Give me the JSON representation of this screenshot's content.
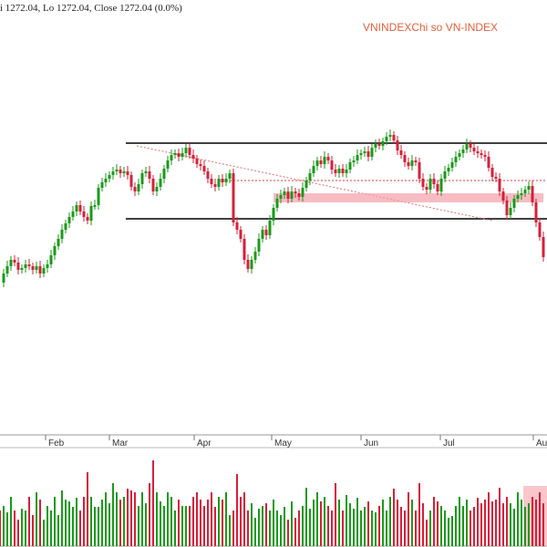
{
  "header": {
    "ohlc_text": "i 1272.04, Lo 1272.04, Close 1272.04 (0.0%)",
    "title": "VNINDEXChi so VN-INDEX"
  },
  "colors": {
    "up": "#1a9a1a",
    "down": "#d6203a",
    "grid": "#bbbbbb",
    "channel_line": "#000000",
    "resistance_dotted": "#e04040",
    "zone_fill": "#f4a0a8",
    "highlight_fill": "#f4a0a8"
  },
  "chart_data": {
    "type": "candlestick",
    "x_tick_labels": [
      "Feb",
      "Mar",
      "Apr",
      "May",
      "Jun",
      "Jul",
      "Aug"
    ],
    "candles": [
      {
        "o": 0.0,
        "c": 0.0,
        "h": 0.0,
        "l": 0.0
      }
    ],
    "price_points": [
      [
        0,
        310
      ],
      [
        4,
        300
      ],
      [
        8,
        292
      ],
      [
        12,
        285
      ],
      [
        16,
        288
      ],
      [
        20,
        296
      ],
      [
        24,
        294
      ],
      [
        28,
        290
      ],
      [
        32,
        292
      ],
      [
        36,
        296
      ],
      [
        40,
        292
      ],
      [
        44,
        300
      ],
      [
        48,
        294
      ],
      [
        52,
        290
      ],
      [
        56,
        280
      ],
      [
        60,
        270
      ],
      [
        64,
        262
      ],
      [
        68,
        252
      ],
      [
        72,
        245
      ],
      [
        76,
        238
      ],
      [
        80,
        232
      ],
      [
        84,
        225
      ],
      [
        88,
        232
      ],
      [
        92,
        238
      ],
      [
        96,
        242
      ],
      [
        100,
        226
      ],
      [
        104,
        225
      ],
      [
        108,
        206
      ],
      [
        112,
        200
      ],
      [
        116,
        196
      ],
      [
        120,
        192
      ],
      [
        124,
        188
      ],
      [
        128,
        186
      ],
      [
        132,
        190
      ],
      [
        136,
        188
      ],
      [
        140,
        192
      ],
      [
        144,
        205
      ],
      [
        148,
        210
      ],
      [
        152,
        202
      ],
      [
        156,
        190
      ],
      [
        160,
        188
      ],
      [
        164,
        196
      ],
      [
        168,
        210
      ],
      [
        172,
        205
      ],
      [
        176,
        196
      ],
      [
        180,
        185
      ],
      [
        184,
        176
      ],
      [
        188,
        170
      ],
      [
        192,
        168
      ],
      [
        196,
        172
      ],
      [
        200,
        168
      ],
      [
        204,
        162
      ],
      [
        208,
        170
      ],
      [
        212,
        174
      ],
      [
        216,
        180
      ],
      [
        220,
        182
      ],
      [
        224,
        188
      ],
      [
        228,
        196
      ],
      [
        232,
        202
      ],
      [
        236,
        205
      ],
      [
        240,
        196
      ],
      [
        244,
        200
      ],
      [
        248,
        196
      ],
      [
        252,
        190
      ],
      [
        256,
        244
      ],
      [
        260,
        252
      ],
      [
        264,
        262
      ],
      [
        268,
        285
      ],
      [
        272,
        295
      ],
      [
        276,
        285
      ],
      [
        280,
        276
      ],
      [
        284,
        262
      ],
      [
        288,
        252
      ],
      [
        292,
        258
      ],
      [
        296,
        242
      ],
      [
        300,
        228
      ],
      [
        304,
        218
      ],
      [
        308,
        214
      ],
      [
        312,
        210
      ],
      [
        316,
        218
      ],
      [
        320,
        210
      ],
      [
        324,
        212
      ],
      [
        328,
        216
      ],
      [
        332,
        206
      ],
      [
        336,
        198
      ],
      [
        340,
        190
      ],
      [
        344,
        182
      ],
      [
        348,
        176
      ],
      [
        352,
        180
      ],
      [
        356,
        172
      ],
      [
        360,
        176
      ],
      [
        364,
        186
      ],
      [
        368,
        190
      ],
      [
        372,
        185
      ],
      [
        376,
        190
      ],
      [
        380,
        186
      ],
      [
        384,
        178
      ],
      [
        388,
        176
      ],
      [
        392,
        170
      ],
      [
        396,
        168
      ],
      [
        400,
        166
      ],
      [
        404,
        172
      ],
      [
        408,
        162
      ],
      [
        412,
        158
      ],
      [
        416,
        160
      ],
      [
        420,
        155
      ],
      [
        424,
        150
      ],
      [
        428,
        148
      ],
      [
        432,
        154
      ],
      [
        436,
        165
      ],
      [
        440,
        170
      ],
      [
        444,
        178
      ],
      [
        448,
        182
      ],
      [
        452,
        176
      ],
      [
        456,
        178
      ],
      [
        460,
        196
      ],
      [
        464,
        205
      ],
      [
        468,
        208
      ],
      [
        472,
        196
      ],
      [
        476,
        202
      ],
      [
        480,
        210
      ],
      [
        484,
        196
      ],
      [
        488,
        188
      ],
      [
        492,
        184
      ],
      [
        496,
        178
      ],
      [
        500,
        172
      ],
      [
        504,
        168
      ],
      [
        508,
        164
      ],
      [
        512,
        158
      ],
      [
        516,
        162
      ],
      [
        520,
        166
      ],
      [
        524,
        168
      ],
      [
        528,
        170
      ],
      [
        532,
        172
      ],
      [
        536,
        184
      ],
      [
        540,
        194
      ],
      [
        544,
        196
      ],
      [
        548,
        210
      ],
      [
        552,
        220
      ],
      [
        556,
        236
      ],
      [
        560,
        228
      ],
      [
        564,
        218
      ],
      [
        568,
        214
      ],
      [
        572,
        212
      ],
      [
        576,
        208
      ],
      [
        580,
        204
      ],
      [
        584,
        222
      ],
      [
        588,
        244
      ],
      [
        592,
        260
      ],
      [
        596,
        282
      ]
    ],
    "volume_points": [
      [
        0,
        560
      ],
      [
        4,
        555
      ],
      [
        8,
        562
      ],
      [
        12,
        545
      ],
      [
        16,
        560
      ],
      [
        20,
        570
      ],
      [
        24,
        558
      ],
      [
        28,
        560
      ],
      [
        32,
        545
      ],
      [
        36,
        565
      ],
      [
        40,
        540
      ],
      [
        44,
        548
      ],
      [
        48,
        570
      ],
      [
        52,
        555
      ],
      [
        56,
        560
      ],
      [
        60,
        545
      ],
      [
        64,
        565
      ],
      [
        68,
        538
      ],
      [
        72,
        548
      ],
      [
        76,
        550
      ],
      [
        80,
        556
      ],
      [
        84,
        546
      ],
      [
        88,
        560
      ],
      [
        92,
        545
      ],
      [
        96,
        518
      ],
      [
        100,
        545
      ],
      [
        104,
        556
      ],
      [
        108,
        556
      ],
      [
        112,
        548
      ],
      [
        116,
        540
      ],
      [
        120,
        552
      ],
      [
        124,
        530
      ],
      [
        128,
        540
      ],
      [
        132,
        548
      ],
      [
        136,
        545
      ],
      [
        140,
        536
      ],
      [
        144,
        538
      ],
      [
        148,
        540
      ],
      [
        152,
        555
      ],
      [
        156,
        540
      ],
      [
        160,
        552
      ],
      [
        164,
        530
      ],
      [
        168,
        505
      ],
      [
        172,
        540
      ],
      [
        176,
        550
      ],
      [
        180,
        555
      ],
      [
        184,
        540
      ],
      [
        188,
        545
      ],
      [
        192,
        560
      ],
      [
        196,
        548
      ],
      [
        200,
        555
      ],
      [
        204,
        555
      ],
      [
        208,
        555
      ],
      [
        212,
        545
      ],
      [
        216,
        540
      ],
      [
        220,
        548
      ],
      [
        224,
        555
      ],
      [
        228,
        548
      ],
      [
        232,
        540
      ],
      [
        236,
        556
      ],
      [
        240,
        545
      ],
      [
        244,
        548
      ],
      [
        248,
        540
      ],
      [
        252,
        565
      ],
      [
        256,
        560
      ],
      [
        260,
        520
      ],
      [
        264,
        545
      ],
      [
        268,
        540
      ],
      [
        272,
        560
      ],
      [
        276,
        552
      ],
      [
        280,
        568
      ],
      [
        284,
        558
      ],
      [
        288,
        555
      ],
      [
        292,
        552
      ],
      [
        296,
        560
      ],
      [
        300,
        548
      ],
      [
        304,
        560
      ],
      [
        308,
        565
      ],
      [
        312,
        556
      ],
      [
        316,
        570
      ],
      [
        320,
        550
      ],
      [
        324,
        568
      ],
      [
        328,
        560
      ],
      [
        332,
        555
      ],
      [
        336,
        535
      ],
      [
        340,
        558
      ],
      [
        344,
        548
      ],
      [
        348,
        540
      ],
      [
        352,
        550
      ],
      [
        356,
        545
      ],
      [
        360,
        555
      ],
      [
        364,
        560
      ],
      [
        368,
        530
      ],
      [
        372,
        548
      ],
      [
        376,
        560
      ],
      [
        380,
        543
      ],
      [
        384,
        552
      ],
      [
        388,
        558
      ],
      [
        392,
        546
      ],
      [
        396,
        560
      ],
      [
        400,
        556
      ],
      [
        404,
        550
      ],
      [
        408,
        560
      ],
      [
        412,
        562
      ],
      [
        416,
        555
      ],
      [
        420,
        548
      ],
      [
        424,
        560
      ],
      [
        428,
        545
      ],
      [
        432,
        536
      ],
      [
        436,
        548
      ],
      [
        440,
        556
      ],
      [
        444,
        560
      ],
      [
        448,
        540
      ],
      [
        452,
        548
      ],
      [
        456,
        560
      ],
      [
        460,
        530
      ],
      [
        464,
        552
      ],
      [
        468,
        570
      ],
      [
        472,
        560
      ],
      [
        476,
        545
      ],
      [
        480,
        550
      ],
      [
        484,
        555
      ],
      [
        488,
        560
      ],
      [
        492,
        568
      ],
      [
        496,
        566
      ],
      [
        500,
        555
      ],
      [
        504,
        545
      ],
      [
        508,
        555
      ],
      [
        512,
        548
      ],
      [
        516,
        560
      ],
      [
        520,
        556
      ],
      [
        524,
        546
      ],
      [
        528,
        552
      ],
      [
        532,
        548
      ],
      [
        536,
        540
      ],
      [
        540,
        550
      ],
      [
        544,
        548
      ],
      [
        548,
        535
      ],
      [
        552,
        552
      ],
      [
        556,
        545
      ],
      [
        560,
        552
      ],
      [
        564,
        558
      ],
      [
        568,
        540
      ],
      [
        572,
        548
      ],
      [
        576,
        556
      ],
      [
        580,
        552
      ],
      [
        584,
        545
      ],
      [
        588,
        548
      ],
      [
        592,
        540
      ],
      [
        596,
        552
      ]
    ]
  }
}
